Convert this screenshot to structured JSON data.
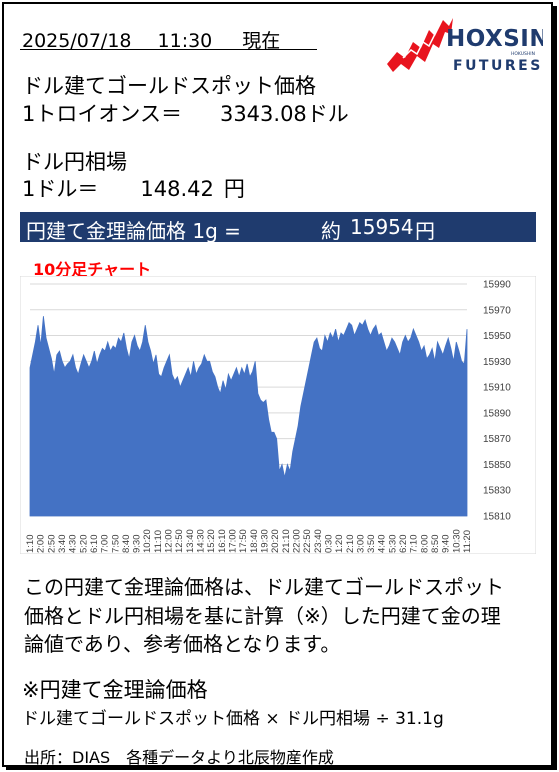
{
  "header": {
    "date": "2025/07/18",
    "time": "11:30",
    "suffix": "現在"
  },
  "logo": {
    "name": "HOXSIN",
    "sub": "FUTURES",
    "tag": "HOKUSHIN",
    "brand_red": "#e8141e",
    "brand_navy": "#1f3b6e"
  },
  "gold": {
    "title": "ドル建てゴールドスポット価格",
    "unit_label": "1トロイオンス＝",
    "value": "3343.08",
    "unit": "ドル"
  },
  "fx": {
    "title": "ドル円相場",
    "unit_label": "1ドル＝",
    "value": "148.42",
    "unit": "円"
  },
  "banner": {
    "label": "円建て金理論価格 1g =",
    "approx": "約",
    "value": "15954",
    "unit": "円"
  },
  "chart_title": "10分足チャート",
  "description": [
    "この円建て金理論価格は、ドル建てゴールドスポット",
    "価格とドル円相場を基に計算（※）した円建て金の理",
    "論値であり、参考価格となります。"
  ],
  "formula": {
    "heading": "※円建て金理論価格",
    "text": "ドル建てゴールドスポット価格 × ドル円相場 ÷ 31.1g"
  },
  "source": "出所：DIAS　各種データより北辰物産作成",
  "chart_data": {
    "type": "area",
    "title": "10分足チャート",
    "xlabel": "",
    "ylabel": "",
    "ylim": [
      15810,
      15990
    ],
    "yticks": [
      15810,
      15830,
      15850,
      15870,
      15890,
      15910,
      15930,
      15950,
      15970,
      15990
    ],
    "xtick_labels": [
      "1:10",
      "2:00",
      "2:50",
      "3:40",
      "4:30",
      "5:20",
      "6:10",
      "7:00",
      "7:50",
      "8:40",
      "9:30",
      "10:20",
      "11:10",
      "12:00",
      "12:50",
      "13:40",
      "14:30",
      "15:20",
      "16:10",
      "17:00",
      "17:50",
      "18:40",
      "19:30",
      "20:20",
      "21:10",
      "22:00",
      "22:50",
      "23:40",
      "0:30",
      "1:20",
      "2:10",
      "3:00",
      "3:50",
      "4:40",
      "5:30",
      "6:20",
      "7:10",
      "8:00",
      "8:50",
      "9:40",
      "10:30",
      "11:20"
    ],
    "grid": true,
    "color": "#4472c4",
    "values": [
      15925,
      15935,
      15945,
      15958,
      15942,
      15965,
      15948,
      15940,
      15932,
      15920,
      15935,
      15938,
      15930,
      15925,
      15928,
      15930,
      15935,
      15925,
      15920,
      15928,
      15935,
      15930,
      15925,
      15930,
      15938,
      15928,
      15935,
      15940,
      15938,
      15945,
      15938,
      15942,
      15940,
      15948,
      15945,
      15952,
      15940,
      15932,
      15945,
      15950,
      15942,
      15938,
      15945,
      15958,
      15945,
      15938,
      15928,
      15935,
      15920,
      15918,
      15925,
      15930,
      15935,
      15920,
      15915,
      15918,
      15910,
      15915,
      15920,
      15925,
      15918,
      15930,
      15920,
      15925,
      15928,
      15935,
      15930,
      15930,
      15922,
      15918,
      15910,
      15905,
      15915,
      15908,
      15920,
      15915,
      15920,
      15925,
      15918,
      15925,
      15920,
      15928,
      15918,
      15922,
      15930,
      15905,
      15900,
      15898,
      15900,
      15885,
      15875,
      15875,
      15870,
      15845,
      15850,
      15840,
      15850,
      15845,
      15860,
      15870,
      15880,
      15895,
      15905,
      15915,
      15925,
      15935,
      15945,
      15948,
      15940,
      15938,
      15950,
      15945,
      15952,
      15948,
      15955,
      15945,
      15952,
      15950,
      15955,
      15960,
      15958,
      15950,
      15955,
      15960,
      15958,
      15962,
      15955,
      15950,
      15955,
      15958,
      15950,
      15952,
      15945,
      15938,
      15942,
      15948,
      15945,
      15940,
      15935,
      15945,
      15950,
      15945,
      15948,
      15955,
      15950,
      15945,
      15938,
      15942,
      15932,
      15935,
      15940,
      15930,
      15945,
      15940,
      15935,
      15942,
      15948,
      15940,
      15930,
      15945,
      15938,
      15930,
      15928,
      15955
    ]
  }
}
